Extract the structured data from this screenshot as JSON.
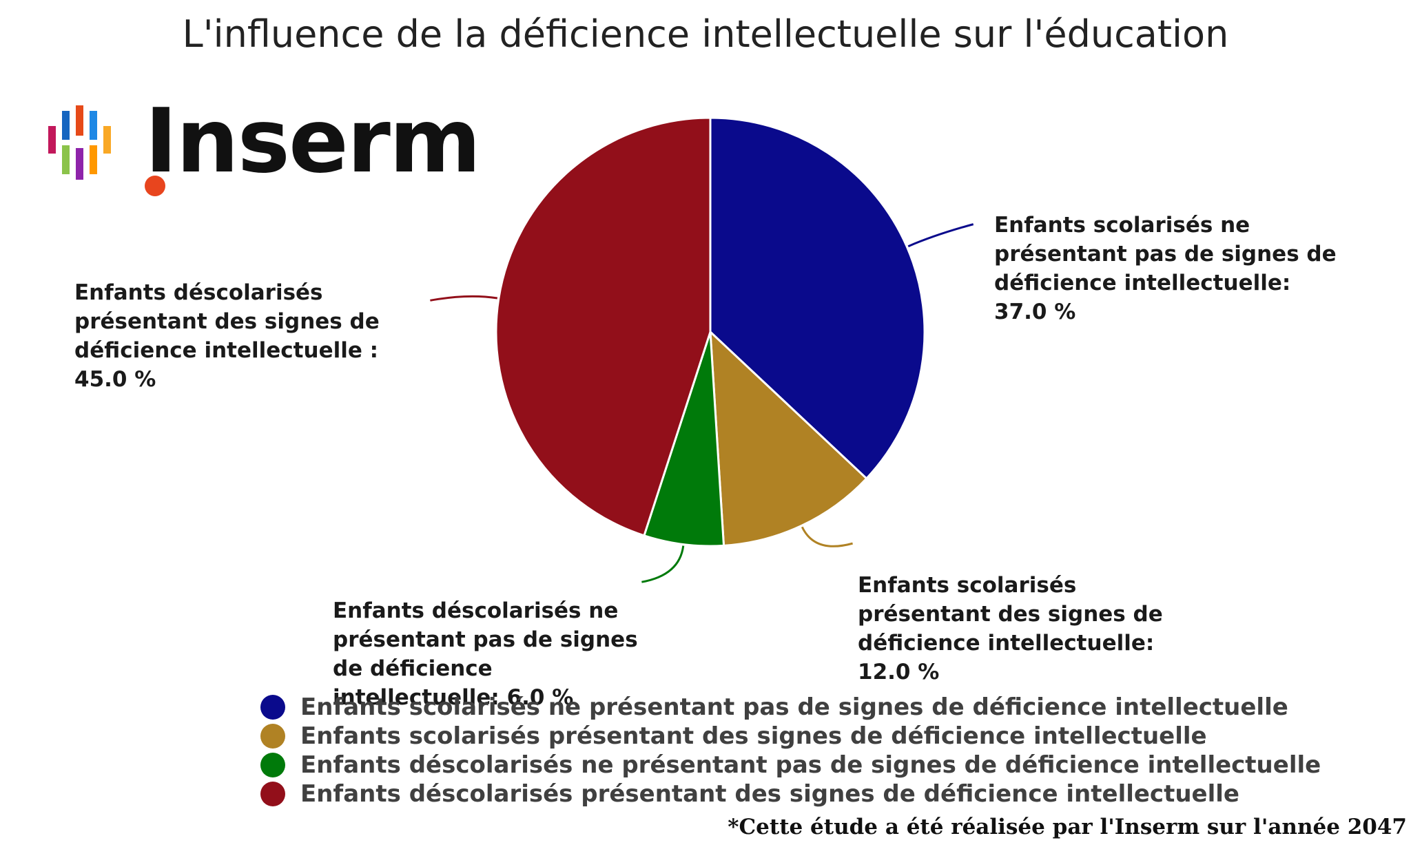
{
  "chart_data": {
    "type": "pie",
    "title": "L'influence de la déficience intellectuelle sur l'éducation",
    "series": [
      {
        "values": [
          37.0,
          12.0,
          6.0,
          45.0
        ],
        "labels": [
          "Enfants scolarisés ne présentant pas de signes de déficience intellectuelle: 37.0 %",
          "Enfants scolarisés présentant des signes de déficience intellectuelle: 12.0 %",
          "Enfants déscolarisés ne présentant pas de signes de déficience intellectuelle: 6.0 %",
          "Enfants déscolarisés présentant des signes de déficience intellectuelle : 45.0 %"
        ]
      }
    ],
    "categories": [
      "Enfants scolarisés ne présentant pas de signes de déficience intellectuelle",
      "Enfants scolarisés présentant des signes de déficience intellectuelle",
      "Enfants déscolarisés ne présentant pas de signes de déficience intellectuelle",
      "Enfants déscolarisés présentant des signes de déficience intellectuelle"
    ],
    "colors": [
      "#0a0a8c",
      "#b08224",
      "#007a0a",
      "#920f1a"
    ],
    "legend": "bottom",
    "start_angle_deg": 0,
    "direction": "clockwise"
  },
  "logo": {
    "text": "Inserm",
    "bar_colors": [
      "#c2185b",
      "#1565c0",
      "#e64a19",
      "#1e88e5",
      "#f9a825",
      "#8bc34a",
      "#8e24aa",
      "#ff9800"
    ]
  },
  "footnote": "*Cette étude a été réalisée par l'Inserm sur l'année 2047"
}
